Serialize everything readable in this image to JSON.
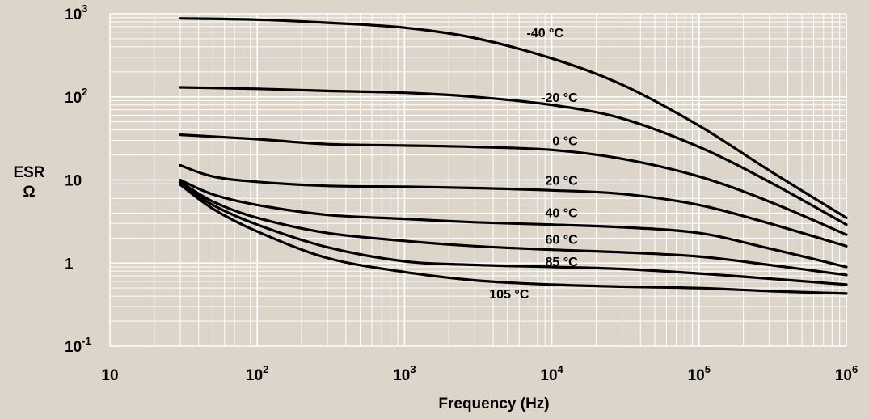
{
  "chart_data": {
    "type": "line",
    "xlabel": "Frequency (Hz)",
    "ylabel_line1": "ESR",
    "ylabel_line2": "Ω",
    "x_scale": "log",
    "y_scale": "log",
    "xlim": [
      10,
      1000000
    ],
    "ylim": [
      0.1,
      1000
    ],
    "grid": true,
    "background_color": "#ddd5c9",
    "plot_color": "#ddd5c9",
    "grid_color": "#ffffff",
    "line_color": "#000000",
    "x_ticks": [
      {
        "value": 10,
        "base": "10",
        "exp": ""
      },
      {
        "value": 100,
        "base": "10",
        "exp": "2"
      },
      {
        "value": 1000,
        "base": "10",
        "exp": "3"
      },
      {
        "value": 10000,
        "base": "10",
        "exp": "4"
      },
      {
        "value": 100000,
        "base": "10",
        "exp": "5"
      },
      {
        "value": 1000000,
        "base": "10",
        "exp": "6"
      }
    ],
    "y_ticks": [
      {
        "value": 0.1,
        "base": "10",
        "exp": "-1"
      },
      {
        "value": 1,
        "base": "1",
        "exp": ""
      },
      {
        "value": 10,
        "base": "10",
        "exp": ""
      },
      {
        "value": 100,
        "base": "10",
        "exp": "2"
      },
      {
        "value": 1000,
        "base": "10",
        "exp": "3"
      }
    ],
    "series": [
      {
        "name": "-40 °C",
        "label_at": [
          12000,
          600
        ],
        "points": [
          [
            30,
            880
          ],
          [
            100,
            850
          ],
          [
            300,
            780
          ],
          [
            1000,
            680
          ],
          [
            3000,
            510
          ],
          [
            10000,
            290
          ],
          [
            30000,
            140
          ],
          [
            100000,
            45
          ],
          [
            300000,
            13
          ],
          [
            1000000,
            3.5
          ]
        ]
      },
      {
        "name": "-20 °C",
        "label_at": [
          15000,
          100
        ],
        "points": [
          [
            30,
            130
          ],
          [
            100,
            125
          ],
          [
            300,
            118
          ],
          [
            1000,
            112
          ],
          [
            3000,
            100
          ],
          [
            10000,
            80
          ],
          [
            30000,
            55
          ],
          [
            100000,
            25
          ],
          [
            300000,
            9.5
          ],
          [
            1000000,
            2.9
          ]
        ]
      },
      {
        "name": "0 °C",
        "label_at": [
          15000,
          30
        ],
        "points": [
          [
            30,
            35
          ],
          [
            100,
            31
          ],
          [
            300,
            27
          ],
          [
            1000,
            26
          ],
          [
            3000,
            25
          ],
          [
            10000,
            23
          ],
          [
            30000,
            18
          ],
          [
            100000,
            11
          ],
          [
            300000,
            5.5
          ],
          [
            1000000,
            2.2
          ]
        ]
      },
      {
        "name": "20 °C",
        "label_at": [
          15000,
          10
        ],
        "points": [
          [
            30,
            15
          ],
          [
            50,
            11
          ],
          [
            100,
            9.5
          ],
          [
            300,
            8.5
          ],
          [
            1000,
            8.3
          ],
          [
            3000,
            8
          ],
          [
            10000,
            7.5
          ],
          [
            30000,
            6.8
          ],
          [
            100000,
            5
          ],
          [
            300000,
            3
          ],
          [
            1000000,
            1.6
          ]
        ]
      },
      {
        "name": "40 °C",
        "label_at": [
          15000,
          4.1
        ],
        "points": [
          [
            30,
            10
          ],
          [
            50,
            6.7
          ],
          [
            100,
            5
          ],
          [
            300,
            3.8
          ],
          [
            1000,
            3.4
          ],
          [
            3000,
            3.1
          ],
          [
            10000,
            2.9
          ],
          [
            30000,
            2.7
          ],
          [
            100000,
            2.3
          ],
          [
            300000,
            1.5
          ],
          [
            1000000,
            0.9
          ]
        ]
      },
      {
        "name": "60 °C",
        "label_at": [
          15000,
          1.95
        ],
        "points": [
          [
            30,
            9.5
          ],
          [
            50,
            5.5
          ],
          [
            100,
            3.5
          ],
          [
            300,
            2.3
          ],
          [
            1000,
            1.85
          ],
          [
            3000,
            1.6
          ],
          [
            10000,
            1.45
          ],
          [
            30000,
            1.35
          ],
          [
            100000,
            1.2
          ],
          [
            300000,
            0.95
          ],
          [
            1000000,
            0.72
          ]
        ]
      },
      {
        "name": "85 °C",
        "label_at": [
          15000,
          1.05
        ],
        "points": [
          [
            30,
            9
          ],
          [
            50,
            5
          ],
          [
            100,
            2.9
          ],
          [
            300,
            1.55
          ],
          [
            1000,
            1.05
          ],
          [
            3000,
            0.95
          ],
          [
            10000,
            0.9
          ],
          [
            30000,
            0.85
          ],
          [
            100000,
            0.75
          ],
          [
            300000,
            0.65
          ],
          [
            1000000,
            0.55
          ]
        ]
      },
      {
        "name": "105 °C",
        "label_at": [
          7000,
          0.43
        ],
        "points": [
          [
            30,
            8.8
          ],
          [
            50,
            4.5
          ],
          [
            100,
            2.4
          ],
          [
            300,
            1.15
          ],
          [
            1000,
            0.78
          ],
          [
            3000,
            0.62
          ],
          [
            10000,
            0.55
          ],
          [
            30000,
            0.52
          ],
          [
            100000,
            0.5
          ],
          [
            300000,
            0.46
          ],
          [
            1000000,
            0.43
          ]
        ]
      }
    ]
  }
}
